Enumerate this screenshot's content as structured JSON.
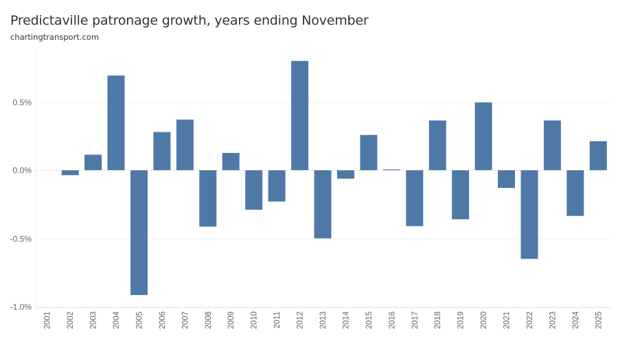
{
  "header": {
    "title": "Predictaville patronage growth, years ending November",
    "subtitle": "chartingtransport.com"
  },
  "chart_data": {
    "type": "bar",
    "title": "Predictaville patronage growth, years ending November",
    "subtitle": "chartingtransport.com",
    "xlabel": "",
    "ylabel": "",
    "categories": [
      "2001",
      "2002",
      "2003",
      "2004",
      "2005",
      "2006",
      "2007",
      "2008",
      "2009",
      "2010",
      "2011",
      "2012",
      "2013",
      "2014",
      "2015",
      "2016",
      "2017",
      "2018",
      "2019",
      "2020",
      "2021",
      "2022",
      "2023",
      "2024",
      "2025"
    ],
    "values": [
      null,
      -0.037,
      0.113,
      0.693,
      -0.915,
      0.279,
      0.37,
      -0.414,
      0.126,
      -0.29,
      -0.23,
      0.8,
      -0.5,
      -0.063,
      0.258,
      0.005,
      -0.41,
      0.364,
      -0.36,
      0.496,
      -0.13,
      -0.65,
      0.364,
      -0.335,
      0.212
    ],
    "unit": "%",
    "ylim": [
      -1.0,
      0.82
    ],
    "yticks": [
      0.5,
      0.0,
      -0.5,
      -1.0
    ],
    "ytick_labels": [
      "0.5%",
      "0.0%",
      "-0.5%",
      "-1.0%"
    ],
    "grid": true,
    "zero_line": "dotted",
    "bar_color": "#4E79A7",
    "legend": "none"
  }
}
